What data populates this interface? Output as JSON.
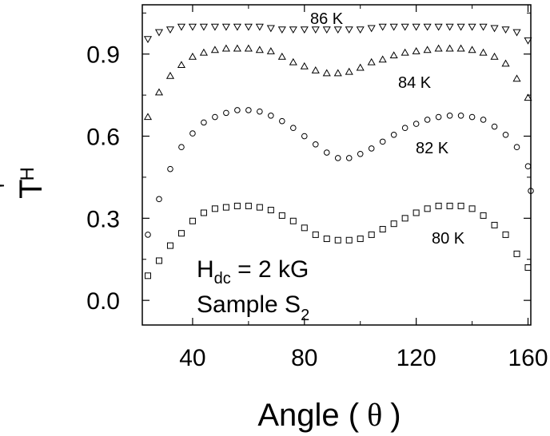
{
  "chart_data": {
    "type": "scatter",
    "title": "",
    "xlabel": "Angle ( θ )",
    "xlabel_text": "Angle (",
    "xlabel_symbol": "θ",
    "xlabel_close": ")",
    "ylabel_main": "T",
    "ylabel_sub": "H",
    "ylabel_sup": "'",
    "xlim": [
      22,
      161
    ],
    "ylim": [
      -0.09,
      1.08
    ],
    "x_ticks": [
      40,
      80,
      120,
      160
    ],
    "x_tick_labels": [
      "40",
      "80",
      "120",
      "160"
    ],
    "y_ticks": [
      0.0,
      0.3,
      0.6,
      0.9
    ],
    "y_tick_labels": [
      "0.0",
      "0.3",
      "0.6",
      "0.9"
    ],
    "grid": false,
    "annotation": {
      "line1_main": "H",
      "line1_sub": "dc",
      "line1_rest": " = 2 kG",
      "line2_main": "Sample S",
      "line2_sub": "2"
    },
    "series": [
      {
        "name": "86 K",
        "marker": "triangle-down",
        "x": [
          24,
          28,
          32,
          36,
          40,
          44,
          48,
          52,
          56,
          60,
          64,
          68,
          72,
          76,
          80,
          84,
          88,
          92,
          96,
          100,
          104,
          108,
          112,
          116,
          120,
          124,
          128,
          132,
          136,
          140,
          144,
          148,
          152,
          156,
          160
        ],
        "y": [
          0.955,
          0.98,
          0.99,
          1.0,
          1.0,
          1.0,
          1.0,
          1.0,
          1.0,
          1.0,
          1.0,
          0.995,
          0.99,
          0.99,
          0.99,
          0.99,
          0.99,
          0.99,
          0.99,
          0.99,
          0.995,
          1.0,
          1.0,
          1.0,
          1.0,
          1.0,
          1.0,
          1.0,
          1.0,
          1.0,
          1.0,
          0.995,
          0.99,
          0.98,
          0.95
        ]
      },
      {
        "name": "84 K",
        "marker": "triangle-up",
        "x": [
          24,
          28,
          32,
          36,
          40,
          44,
          48,
          52,
          56,
          60,
          64,
          68,
          72,
          76,
          80,
          84,
          88,
          92,
          96,
          100,
          104,
          108,
          112,
          116,
          120,
          124,
          128,
          132,
          136,
          140,
          144,
          148,
          152,
          156,
          160
        ],
        "y": [
          0.67,
          0.76,
          0.82,
          0.86,
          0.89,
          0.905,
          0.915,
          0.92,
          0.92,
          0.92,
          0.915,
          0.91,
          0.89,
          0.87,
          0.855,
          0.84,
          0.83,
          0.83,
          0.835,
          0.85,
          0.87,
          0.88,
          0.895,
          0.905,
          0.91,
          0.915,
          0.92,
          0.92,
          0.92,
          0.915,
          0.905,
          0.89,
          0.865,
          0.81,
          0.74
        ]
      },
      {
        "name": "82 K",
        "marker": "circle",
        "x": [
          24,
          28,
          32,
          36,
          40,
          44,
          48,
          52,
          56,
          60,
          64,
          68,
          72,
          76,
          80,
          84,
          88,
          92,
          96,
          100,
          104,
          108,
          112,
          116,
          120,
          124,
          128,
          132,
          136,
          140,
          144,
          148,
          152,
          156,
          160
        ],
        "y": [
          0.24,
          0.37,
          0.48,
          0.56,
          0.61,
          0.65,
          0.67,
          0.685,
          0.695,
          0.695,
          0.69,
          0.675,
          0.655,
          0.63,
          0.6,
          0.57,
          0.54,
          0.52,
          0.52,
          0.535,
          0.555,
          0.58,
          0.605,
          0.63,
          0.645,
          0.66,
          0.67,
          0.675,
          0.675,
          0.67,
          0.66,
          0.635,
          0.605,
          0.56,
          0.49
        ]
      },
      {
        "name": "80 K",
        "marker": "square",
        "x": [
          24,
          28,
          32,
          36,
          40,
          44,
          48,
          52,
          56,
          60,
          64,
          68,
          72,
          76,
          80,
          84,
          88,
          92,
          96,
          100,
          104,
          108,
          112,
          116,
          120,
          124,
          128,
          132,
          136,
          140,
          144,
          148,
          152,
          156,
          160
        ],
        "y": [
          0.09,
          0.145,
          0.2,
          0.245,
          0.29,
          0.32,
          0.335,
          0.34,
          0.345,
          0.345,
          0.34,
          0.33,
          0.31,
          0.29,
          0.265,
          0.24,
          0.225,
          0.22,
          0.22,
          0.225,
          0.24,
          0.26,
          0.28,
          0.3,
          0.32,
          0.335,
          0.345,
          0.345,
          0.345,
          0.335,
          0.31,
          0.275,
          0.24,
          0.17,
          0.12
        ]
      }
    ],
    "extra_points": [
      {
        "series": "82 K",
        "x": 161,
        "y": 0.4
      }
    ]
  }
}
